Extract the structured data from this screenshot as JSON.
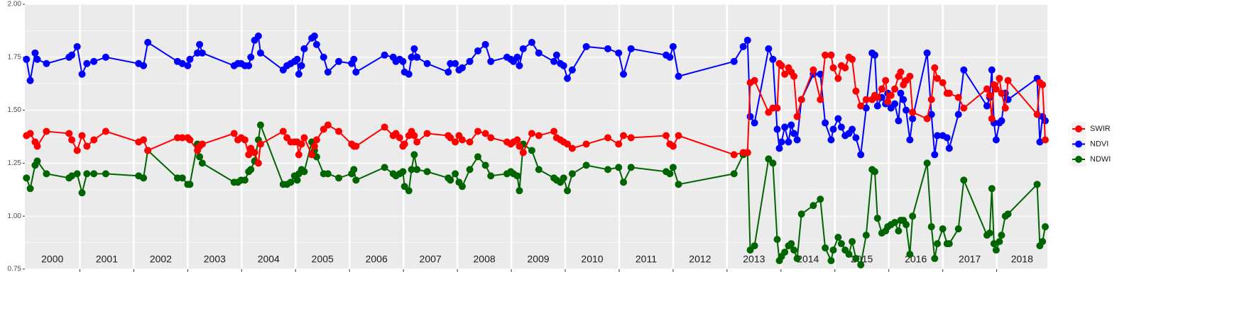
{
  "chart_data": {
    "type": "line",
    "categories": [
      "2000",
      "2001",
      "2002",
      "2003",
      "2004",
      "2005",
      "2006",
      "2007",
      "2008",
      "2009",
      "2010",
      "2011",
      "2012",
      "2013",
      "2014",
      "2015",
      "2016",
      "2017",
      "2018"
    ],
    "x": [
      2000.01,
      2000.08,
      2000.17,
      2000.21,
      2000.38,
      2000.8,
      2000.85,
      2000.95,
      2001.04,
      2001.13,
      2001.26,
      2001.48,
      2002.09,
      2002.18,
      2002.26,
      2002.81,
      2002.9,
      2003.0,
      2003.04,
      2003.18,
      2003.22,
      2003.27,
      2003.86,
      2003.93,
      2003.99,
      2004.06,
      2004.13,
      2004.17,
      2004.24,
      2004.31,
      2004.35,
      2004.77,
      2004.84,
      2004.91,
      2004.98,
      2005.03,
      2005.06,
      2005.11,
      2005.16,
      2005.3,
      2005.35,
      2005.39,
      2005.52,
      2005.6,
      2005.8,
      2006.04,
      2006.08,
      2006.12,
      2006.65,
      2006.81,
      2006.86,
      2006.93,
      2006.99,
      2007.02,
      2007.1,
      2007.15,
      2007.2,
      2007.25,
      2007.44,
      2007.83,
      2007.87,
      2007.96,
      2008.03,
      2008.09,
      2008.23,
      2008.38,
      2008.52,
      2008.62,
      2008.92,
      2008.99,
      2009.04,
      2009.11,
      2009.15,
      2009.22,
      2009.38,
      2009.51,
      2009.79,
      2009.84,
      2009.91,
      2009.97,
      2010.04,
      2010.13,
      2010.39,
      2010.79,
      2010.99,
      2011.08,
      2011.22,
      2011.87,
      2011.94,
      2012.0,
      2012.1,
      2013.13,
      2013.3,
      2013.38,
      2013.43,
      2013.51,
      2013.77,
      2013.85,
      2013.93,
      2013.97,
      2014.01,
      2014.07,
      2014.14,
      2014.19,
      2014.24,
      2014.3,
      2014.38,
      2014.6,
      2014.73,
      2014.82,
      2014.93,
      2014.97,
      2015.06,
      2015.12,
      2015.19,
      2015.26,
      2015.32,
      2015.39,
      2015.48,
      2015.58,
      2015.69,
      2015.74,
      2015.79,
      2015.87,
      2015.94,
      2015.98,
      2016.04,
      2016.11,
      2016.18,
      2016.22,
      2016.27,
      2016.32,
      2016.39,
      2016.44,
      2016.71,
      2016.79,
      2016.85,
      2016.9,
      2017.0,
      2017.08,
      2017.12,
      2017.29,
      2017.39,
      2017.82,
      2017.87,
      2017.91,
      2017.95,
      2017.99,
      2018.05,
      2018.09,
      2018.16,
      2018.21,
      2018.75,
      2018.8,
      2018.85,
      2018.9
    ],
    "series": [
      {
        "name": "SWIR",
        "color": "#ff0000",
        "values": [
          1.38,
          1.39,
          1.35,
          1.33,
          1.4,
          1.39,
          1.36,
          1.31,
          1.38,
          1.33,
          1.36,
          1.4,
          1.35,
          1.36,
          1.31,
          1.37,
          1.37,
          1.37,
          1.36,
          1.31,
          1.33,
          1.34,
          1.39,
          1.36,
          1.37,
          1.36,
          1.29,
          1.32,
          1.3,
          1.25,
          1.34,
          1.4,
          1.37,
          1.35,
          1.35,
          1.35,
          1.29,
          1.34,
          1.37,
          1.29,
          1.33,
          1.36,
          1.41,
          1.43,
          1.4,
          1.34,
          1.33,
          1.33,
          1.42,
          1.38,
          1.39,
          1.37,
          1.33,
          1.34,
          1.38,
          1.4,
          1.38,
          1.35,
          1.39,
          1.38,
          1.37,
          1.35,
          1.38,
          1.36,
          1.35,
          1.4,
          1.39,
          1.37,
          1.35,
          1.34,
          1.35,
          1.36,
          1.33,
          1.3,
          1.39,
          1.38,
          1.4,
          1.37,
          1.36,
          1.35,
          1.34,
          1.32,
          1.34,
          1.37,
          1.34,
          1.38,
          1.37,
          1.38,
          1.34,
          1.33,
          1.38,
          1.29,
          1.3,
          1.3,
          1.63,
          1.64,
          1.49,
          1.51,
          1.51,
          1.72,
          1.71,
          1.67,
          1.7,
          1.68,
          1.66,
          1.47,
          1.55,
          1.69,
          1.55,
          1.76,
          1.76,
          1.7,
          1.65,
          1.71,
          1.7,
          1.75,
          1.74,
          1.59,
          1.52,
          1.55,
          1.55,
          1.57,
          1.56,
          1.6,
          1.64,
          1.54,
          1.57,
          1.6,
          1.66,
          1.68,
          1.62,
          1.64,
          1.66,
          1.49,
          1.46,
          1.55,
          1.7,
          1.65,
          1.63,
          1.58,
          1.58,
          1.56,
          1.51,
          1.6,
          1.57,
          1.46,
          1.62,
          1.6,
          1.65,
          1.58,
          1.51,
          1.64,
          1.48,
          1.63,
          1.62,
          1.36
        ]
      },
      {
        "name": "NDVI",
        "color": "#0000ff",
        "values": [
          1.74,
          1.64,
          1.77,
          1.74,
          1.72,
          1.75,
          1.76,
          1.8,
          1.67,
          1.72,
          1.73,
          1.75,
          1.72,
          1.71,
          1.82,
          1.73,
          1.72,
          1.71,
          1.74,
          1.77,
          1.81,
          1.77,
          1.71,
          1.72,
          1.72,
          1.71,
          1.71,
          1.75,
          1.83,
          1.85,
          1.77,
          1.69,
          1.71,
          1.72,
          1.73,
          1.74,
          1.67,
          1.71,
          1.79,
          1.84,
          1.85,
          1.81,
          1.75,
          1.68,
          1.73,
          1.72,
          1.74,
          1.68,
          1.76,
          1.75,
          1.73,
          1.74,
          1.73,
          1.68,
          1.67,
          1.75,
          1.79,
          1.75,
          1.72,
          1.68,
          1.72,
          1.72,
          1.69,
          1.7,
          1.73,
          1.78,
          1.81,
          1.73,
          1.75,
          1.74,
          1.73,
          1.75,
          1.71,
          1.79,
          1.82,
          1.77,
          1.73,
          1.76,
          1.72,
          1.71,
          1.65,
          1.69,
          1.8,
          1.79,
          1.77,
          1.67,
          1.79,
          1.76,
          1.75,
          1.8,
          1.66,
          1.73,
          1.8,
          1.83,
          1.47,
          1.44,
          1.79,
          1.74,
          1.41,
          1.32,
          1.35,
          1.42,
          1.35,
          1.43,
          1.39,
          1.36,
          1.55,
          1.67,
          1.67,
          1.44,
          1.36,
          1.41,
          1.46,
          1.42,
          1.38,
          1.39,
          1.41,
          1.37,
          1.29,
          1.51,
          1.77,
          1.76,
          1.52,
          1.56,
          1.53,
          1.58,
          1.51,
          1.53,
          1.45,
          1.58,
          1.55,
          1.5,
          1.36,
          1.46,
          1.77,
          1.48,
          1.29,
          1.38,
          1.38,
          1.37,
          1.32,
          1.48,
          1.69,
          1.52,
          1.56,
          1.69,
          1.44,
          1.36,
          1.44,
          1.45,
          1.58,
          1.55,
          1.65,
          1.35,
          1.47,
          1.45
        ]
      },
      {
        "name": "NDWI",
        "color": "#006400",
        "values": [
          1.18,
          1.13,
          1.24,
          1.26,
          1.2,
          1.18,
          1.19,
          1.2,
          1.11,
          1.2,
          1.2,
          1.2,
          1.19,
          1.18,
          1.31,
          1.18,
          1.18,
          1.15,
          1.15,
          1.34,
          1.28,
          1.25,
          1.16,
          1.16,
          1.17,
          1.17,
          1.21,
          1.22,
          1.26,
          1.36,
          1.43,
          1.15,
          1.15,
          1.16,
          1.19,
          1.17,
          1.2,
          1.22,
          1.21,
          1.35,
          1.31,
          1.28,
          1.2,
          1.2,
          1.18,
          1.2,
          1.22,
          1.17,
          1.23,
          1.2,
          1.19,
          1.2,
          1.21,
          1.14,
          1.12,
          1.22,
          1.29,
          1.22,
          1.21,
          1.18,
          1.17,
          1.2,
          1.16,
          1.14,
          1.22,
          1.28,
          1.24,
          1.19,
          1.2,
          1.21,
          1.2,
          1.19,
          1.12,
          1.34,
          1.31,
          1.22,
          1.18,
          1.17,
          1.16,
          1.18,
          1.12,
          1.2,
          1.24,
          1.22,
          1.23,
          1.16,
          1.23,
          1.21,
          1.2,
          1.23,
          1.15,
          1.2,
          1.29,
          1.3,
          0.84,
          0.86,
          1.27,
          1.25,
          0.89,
          0.79,
          0.81,
          0.83,
          0.86,
          0.87,
          0.84,
          0.8,
          1.01,
          1.05,
          1.08,
          0.85,
          0.79,
          0.84,
          0.9,
          0.87,
          0.84,
          0.82,
          0.88,
          0.8,
          0.77,
          0.91,
          1.22,
          1.21,
          0.99,
          0.92,
          0.93,
          0.95,
          0.96,
          0.97,
          0.93,
          0.98,
          0.98,
          0.96,
          0.82,
          1.0,
          1.25,
          0.95,
          0.8,
          0.87,
          0.94,
          0.87,
          0.87,
          0.94,
          1.17,
          0.91,
          0.92,
          1.13,
          0.87,
          0.84,
          0.88,
          0.91,
          1.0,
          1.01,
          1.15,
          0.86,
          0.88,
          0.95
        ]
      }
    ],
    "xlim": [
      1999.98,
      2018.94
    ],
    "xticks": [
      2001,
      2002,
      2003,
      2004,
      2005,
      2006,
      2007,
      2008,
      2009,
      2010,
      2011,
      2012,
      2013,
      2014,
      2015,
      2016,
      2017,
      2018
    ],
    "ylim": [
      0.75,
      2.0
    ],
    "yticks": [
      0.75,
      {
        "value": 1.0,
        "label": "1.00"
      },
      1.25,
      {
        "value": 1.5,
        "label": "1.50"
      },
      1.75,
      {
        "value": 2.0,
        "label": "2.00"
      }
    ],
    "grid": true,
    "legend": "right"
  }
}
